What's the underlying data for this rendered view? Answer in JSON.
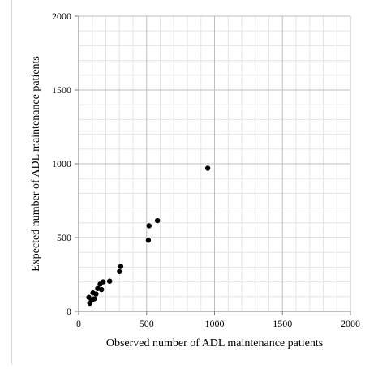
{
  "chart_data": {
    "type": "scatter",
    "title": "",
    "xlabel": "Observed number of ADL maintenance patients",
    "ylabel": "Expected number of ADL maintenance patients",
    "xlim": [
      0,
      2000
    ],
    "ylim": [
      0,
      2000
    ],
    "major_ticks": [
      0,
      500,
      1000,
      1500,
      2000
    ],
    "minor_step": 100,
    "grid": true,
    "marker_color": "#000000",
    "points": [
      {
        "x": 75,
        "y": 95
      },
      {
        "x": 82,
        "y": 55
      },
      {
        "x": 95,
        "y": 75
      },
      {
        "x": 105,
        "y": 125
      },
      {
        "x": 115,
        "y": 85
      },
      {
        "x": 128,
        "y": 118
      },
      {
        "x": 140,
        "y": 155
      },
      {
        "x": 158,
        "y": 185
      },
      {
        "x": 168,
        "y": 148
      },
      {
        "x": 180,
        "y": 200
      },
      {
        "x": 228,
        "y": 205
      },
      {
        "x": 300,
        "y": 270
      },
      {
        "x": 310,
        "y": 305
      },
      {
        "x": 513,
        "y": 482
      },
      {
        "x": 518,
        "y": 580
      },
      {
        "x": 580,
        "y": 615
      },
      {
        "x": 950,
        "y": 970
      }
    ]
  },
  "colors": {
    "major_grid": "#bfbfbf",
    "minor_grid": "#e5e5e5",
    "axis": "#7f7f7f",
    "background": "#ffffff"
  }
}
